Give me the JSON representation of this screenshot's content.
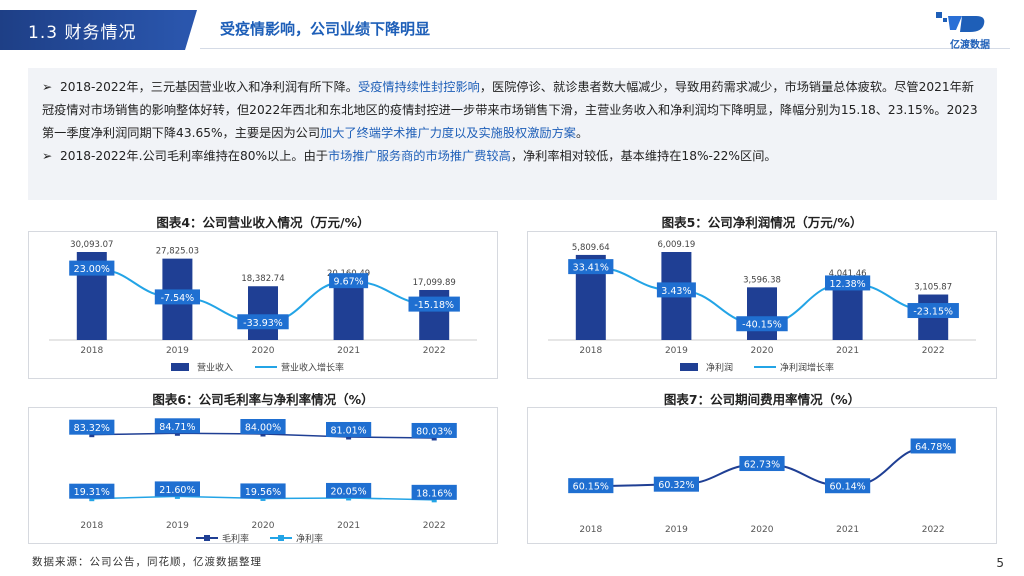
{
  "header": {
    "section": "1.3 财务情况",
    "subtitle": "受疫情影响，公司业绩下降明显",
    "logo_text": "亿渡数据"
  },
  "summary": {
    "p1_a": "2018-2022年，三元基因营业收入和净利润有所下降。",
    "p1_b": "受疫情持续性封控影响",
    "p1_c": "，医院停诊、就诊患者数大幅减少，导致用药需求减少，市场销量总体疲软。尽管2021年新冠疫情对市场销售的影响整体好转，但2022年西北和东北地区的疫情封控进一步带来市场销售下滑，主营业务收入和净利润均下降明显，降幅分别为15.18、23.15%。2023第一季度净利润同期下降43.65%，主要是因为公司",
    "p1_d": "加大了终端学术推广力度以及实施股权激励方案",
    "p1_e": "。",
    "p2_a": "2018-2022年.公司毛利率维持在80%以上。由于",
    "p2_b": "市场推广服务商的市场推广费较高",
    "p2_c": "，净利率相对较低，基本维持在18%-22%区间。",
    "bullet": "➢"
  },
  "footer": {
    "source": "数据来源：公司公告，同花顺，亿渡数据整理",
    "page": "5"
  },
  "colors": {
    "bar": "#1f3f94",
    "line": "#23a4e6",
    "label_bg": "#1f6fd1"
  },
  "chart_data": [
    {
      "id": "chart4",
      "type": "bar+line",
      "title": "图表4：公司营业收入情况（万元/%）",
      "categories": [
        "2018",
        "2019",
        "2020",
        "2021",
        "2022"
      ],
      "bar_series": {
        "name": "营业收入",
        "values": [
          30093.07,
          27825.03,
          18382.74,
          20160.49,
          17099.89
        ],
        "labels": [
          "30,093.07",
          "27,825.03",
          "18,382.74",
          "20,160.49",
          "17,099.89"
        ]
      },
      "line_series": {
        "name": "营业收入增长率",
        "values": [
          23.0,
          -7.54,
          -33.93,
          9.67,
          -15.18
        ],
        "labels": [
          "23.00%",
          "-7.54%",
          "-33.93%",
          "9.67%",
          "-15.18%"
        ]
      }
    },
    {
      "id": "chart5",
      "type": "bar+line",
      "title": "图表5：公司净利润情况（万元/%）",
      "categories": [
        "2018",
        "2019",
        "2020",
        "2021",
        "2022"
      ],
      "bar_series": {
        "name": "净利润",
        "values": [
          5809.64,
          6009.19,
          3596.38,
          4041.46,
          3105.87
        ],
        "labels": [
          "5,809.64",
          "6,009.19",
          "3,596.38",
          "4,041.46",
          "3,105.87"
        ]
      },
      "line_series": {
        "name": "净利润增长率",
        "values": [
          33.41,
          3.43,
          -40.15,
          12.38,
          -23.15
        ],
        "labels": [
          "33.41%",
          "3.43%",
          "-40.15%",
          "12.38%",
          "-23.15%"
        ]
      }
    },
    {
      "id": "chart6",
      "type": "line",
      "title": "图表6：公司毛利率与净利率情况（%）",
      "categories": [
        "2018",
        "2019",
        "2020",
        "2021",
        "2022"
      ],
      "series": [
        {
          "name": "毛利率",
          "values": [
            83.32,
            84.71,
            84.0,
            81.01,
            80.03
          ],
          "labels": [
            "83.32%",
            "84.71%",
            "84.00%",
            "81.01%",
            "80.03%"
          ]
        },
        {
          "name": "净利率",
          "values": [
            19.31,
            21.6,
            19.56,
            20.05,
            18.16
          ],
          "labels": [
            "19.31%",
            "21.60%",
            "19.56%",
            "20.05%",
            "18.16%"
          ]
        }
      ]
    },
    {
      "id": "chart7",
      "type": "line",
      "title": "图表7：公司期间费用率情况（%）",
      "categories": [
        "2018",
        "2019",
        "2020",
        "2021",
        "2022"
      ],
      "series": [
        {
          "name": "",
          "values": [
            60.15,
            60.32,
            62.73,
            60.14,
            64.78
          ],
          "labels": [
            "60.15%",
            "60.32%",
            "62.73%",
            "60.14%",
            "64.78%"
          ]
        }
      ]
    }
  ]
}
